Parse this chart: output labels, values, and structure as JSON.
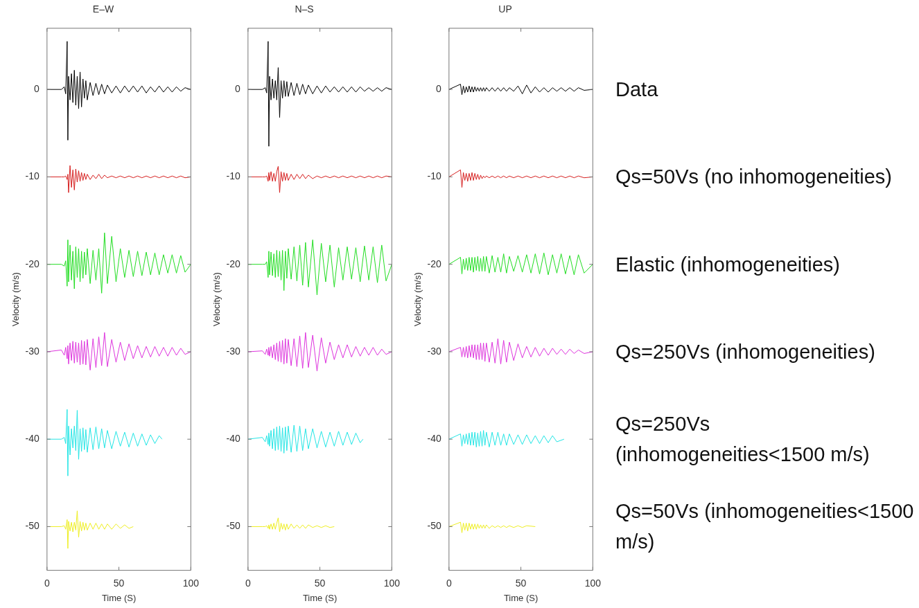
{
  "chart_data": [
    {
      "type": "line",
      "title": "E–W",
      "xlabel": "Time (S)",
      "ylabel": "Velocity (m/s)",
      "xlim": [
        0,
        100
      ],
      "xticks": [
        0,
        50,
        100
      ],
      "ylim": [
        -55,
        7
      ],
      "yticks": [
        -50,
        -40,
        -30,
        -20,
        -10,
        0
      ],
      "marker": "none",
      "x": [
        0,
        10,
        12,
        13,
        14,
        14.5,
        15,
        16,
        17,
        18,
        19,
        20,
        21,
        22,
        23,
        24,
        25,
        26,
        27,
        28,
        30,
        32,
        34,
        36,
        38,
        40,
        42,
        45,
        48,
        51,
        54,
        57,
        60,
        63,
        66,
        69,
        72,
        75,
        78,
        81,
        84,
        87,
        90,
        93,
        96,
        100
      ],
      "series": [
        {
          "color": "#000000",
          "values": [
            0,
            0,
            0.3,
            -0.5,
            5.5,
            -5.8,
            1.5,
            -1.2,
            1.8,
            -1.5,
            2.2,
            -1.8,
            1.5,
            -2.2,
            2.0,
            -2.0,
            1.2,
            -1.0,
            1.0,
            -1.2,
            0.8,
            -0.7,
            0.7,
            -0.6,
            0.6,
            -0.5,
            0.5,
            -0.4,
            0.4,
            -0.4,
            0.4,
            -0.3,
            0.4,
            -0.3,
            0.4,
            -0.4,
            0.3,
            -0.3,
            0.4,
            -0.3,
            0.3,
            -0.3,
            0.3,
            -0.2,
            0.2,
            0
          ]
        },
        {
          "color": "#d62020",
          "values": [
            -10,
            -10,
            -10,
            -9.9,
            -10.3,
            -9.7,
            -11.8,
            -8.7,
            -11.2,
            -9.2,
            -11.5,
            -9.1,
            -10.6,
            -9.3,
            -10.5,
            -9.5,
            -10.4,
            -9.6,
            -10.3,
            -9.7,
            -10.3,
            -9.8,
            -10.2,
            -9.7,
            -10.2,
            -9.8,
            -10.1,
            -9.9,
            -10.1,
            -9.9,
            -10.1,
            -9.9,
            -10.1,
            -9.9,
            -10.1,
            -9.9,
            -10.1,
            -9.9,
            -10.1,
            -9.9,
            -10.1,
            -9.9,
            -10.1,
            -9.9,
            -10.1,
            -10
          ]
        },
        {
          "color": "#22dd22",
          "values": [
            -20,
            -20,
            -20.2,
            -19.6,
            -22.5,
            -17.2,
            -22,
            -17.8,
            -21.8,
            -18.5,
            -22.8,
            -18,
            -21.5,
            -18.2,
            -22,
            -18.5,
            -21.6,
            -18.6,
            -21.2,
            -18.2,
            -22.2,
            -18.4,
            -21.8,
            -18.2,
            -23.3,
            -16.4,
            -22.2,
            -16.8,
            -22,
            -18.2,
            -21.5,
            -18.4,
            -21.4,
            -18.5,
            -21.3,
            -18.6,
            -21.2,
            -18.7,
            -21.2,
            -18.9,
            -21,
            -18.9,
            -21,
            -19,
            -20.9,
            -20
          ]
        },
        {
          "color": "#dd33dd",
          "values": [
            -30,
            -29.8,
            -30.4,
            -29.5,
            -30.8,
            -29.3,
            -31.4,
            -29,
            -31,
            -28.8,
            -31.3,
            -28.9,
            -31.2,
            -29,
            -31.5,
            -28.7,
            -31.4,
            -28.8,
            -31.5,
            -28.6,
            -32.1,
            -28.5,
            -31.8,
            -28.3,
            -31.6,
            -27.8,
            -31.7,
            -28.6,
            -31.2,
            -28.9,
            -31,
            -29.1,
            -30.8,
            -29.3,
            -30.7,
            -29.4,
            -30.6,
            -29.4,
            -30.5,
            -29.5,
            -30.5,
            -29.5,
            -30.4,
            -29.6,
            -30.3,
            -30
          ]
        },
        {
          "color": "#22e5e5",
          "x": [
            0,
            10,
            12,
            13,
            14,
            14.5,
            15,
            16,
            17,
            18,
            19,
            20,
            21,
            22,
            23,
            24,
            25,
            26,
            27,
            28,
            30,
            32,
            34,
            36,
            38,
            40,
            42,
            45,
            48,
            51,
            54,
            57,
            60,
            63,
            66,
            69,
            72,
            75,
            78,
            80
          ],
          "values": [
            -40,
            -40,
            -39.8,
            -40.5,
            -36.6,
            -44.2,
            -38.5,
            -41.8,
            -38.8,
            -41,
            -38.5,
            -41.3,
            -36.7,
            -42.3,
            -38.8,
            -41.4,
            -38.7,
            -41.2,
            -38.9,
            -41.5,
            -38.7,
            -41.2,
            -38.6,
            -41.1,
            -38.8,
            -41,
            -39,
            -41.1,
            -39.1,
            -40.8,
            -39.2,
            -40.9,
            -39.3,
            -40.8,
            -39.4,
            -40.7,
            -39.5,
            -40.5,
            -39.6,
            -40
          ]
        },
        {
          "color": "#eeee22",
          "x": [
            0,
            10,
            12,
            13,
            14,
            14.5,
            15,
            16,
            17,
            18,
            19,
            20,
            21,
            22,
            23,
            24,
            25,
            26,
            27,
            28,
            30,
            32,
            34,
            36,
            38,
            40,
            42,
            45,
            48,
            51,
            54,
            57,
            60
          ],
          "values": [
            -50,
            -50,
            -49.9,
            -50.3,
            -49.2,
            -52.5,
            -49.4,
            -50.5,
            -49.5,
            -50.6,
            -49.5,
            -50.4,
            -48.2,
            -51.2,
            -49.4,
            -50.5,
            -49.5,
            -50.4,
            -49.6,
            -50.4,
            -49.6,
            -50.3,
            -49.6,
            -50.3,
            -49.7,
            -50.3,
            -49.7,
            -50.3,
            -49.7,
            -50.2,
            -49.8,
            -50.2,
            -50
          ]
        }
      ]
    },
    {
      "type": "line",
      "title": "N–S",
      "xlabel": "Time (S)",
      "ylabel": "Velocity (m/s)",
      "xlim": [
        0,
        100
      ],
      "xticks": [
        0,
        50,
        100
      ],
      "ylim": [
        -55,
        7
      ],
      "yticks": [
        -50,
        -40,
        -30,
        -20,
        -10,
        0
      ],
      "marker": "none",
      "x": [
        0,
        10,
        12,
        13,
        14,
        14.5,
        15,
        16,
        17,
        18,
        19,
        20,
        21,
        22,
        23,
        24,
        25,
        26,
        27,
        28,
        30,
        32,
        34,
        36,
        38,
        40,
        42,
        45,
        48,
        51,
        54,
        57,
        60,
        63,
        66,
        69,
        72,
        75,
        78,
        81,
        84,
        87,
        90,
        93,
        96,
        100
      ],
      "series": [
        {
          "color": "#000000",
          "values": [
            0,
            0,
            0.2,
            -0.4,
            5.5,
            -6.5,
            1.5,
            -1.2,
            1.2,
            -1.0,
            1.0,
            -1.2,
            2.5,
            -3.2,
            1.0,
            -1.0,
            1.0,
            -0.8,
            0.9,
            -0.8,
            0.8,
            -0.7,
            0.7,
            -0.6,
            0.6,
            -0.5,
            0.5,
            -0.5,
            0.4,
            -0.4,
            0.4,
            -0.3,
            0.3,
            -0.3,
            0.3,
            -0.3,
            0.3,
            -0.3,
            0.3,
            -0.2,
            0.2,
            -0.2,
            0.2,
            -0.2,
            0.2,
            0
          ]
        },
        {
          "color": "#d62020",
          "values": [
            -10,
            -10,
            -10,
            -9.9,
            -10.5,
            -9.5,
            -10.4,
            -9.4,
            -10.5,
            -9.6,
            -10.5,
            -9.4,
            -8.8,
            -11.8,
            -9.4,
            -10.5,
            -9.5,
            -10.4,
            -9.6,
            -10.4,
            -9.7,
            -10.3,
            -9.7,
            -10.2,
            -9.7,
            -10.2,
            -9.8,
            -10.2,
            -9.9,
            -10.1,
            -9.9,
            -10.1,
            -9.9,
            -10.1,
            -9.9,
            -10.1,
            -9.9,
            -10.1,
            -9.9,
            -10.1,
            -9.9,
            -10.1,
            -9.9,
            -10.1,
            -9.9,
            -10
          ]
        },
        {
          "color": "#22dd22",
          "values": [
            -20,
            -20,
            -20,
            -19.7,
            -21.5,
            -18.5,
            -21.2,
            -18.6,
            -21.3,
            -18.8,
            -21.5,
            -18.4,
            -21.4,
            -18.5,
            -21.8,
            -18.4,
            -23,
            -18.5,
            -21.6,
            -18.2,
            -21.7,
            -18,
            -21.9,
            -17.8,
            -22.4,
            -17.5,
            -22.6,
            -17.2,
            -23.5,
            -17.6,
            -22,
            -17.8,
            -22.6,
            -18.1,
            -21.8,
            -18,
            -21.7,
            -18.1,
            -22,
            -17.9,
            -21.8,
            -18,
            -22.1,
            -17.8,
            -21.9,
            -20
          ]
        },
        {
          "color": "#dd33dd",
          "values": [
            -30,
            -29.9,
            -30.3,
            -29.7,
            -30.4,
            -29.5,
            -30.5,
            -29.4,
            -30.7,
            -29.2,
            -30.9,
            -29,
            -31.1,
            -28.8,
            -31.2,
            -28.7,
            -31.4,
            -28.5,
            -31.3,
            -28.6,
            -31.6,
            -28.5,
            -31.7,
            -28.2,
            -31.9,
            -27.8,
            -31.8,
            -28.1,
            -32.2,
            -28.4,
            -31.3,
            -28.9,
            -30.9,
            -29.2,
            -30.7,
            -29.2,
            -30.6,
            -29.4,
            -30.5,
            -29.5,
            -30.4,
            -29.5,
            -30.4,
            -29.7,
            -30.3,
            -30
          ]
        },
        {
          "color": "#22e5e5",
          "x": [
            0,
            10,
            12,
            13,
            14,
            14.5,
            15,
            16,
            17,
            18,
            19,
            20,
            21,
            22,
            23,
            24,
            25,
            26,
            27,
            28,
            30,
            32,
            34,
            36,
            38,
            40,
            42,
            45,
            48,
            51,
            54,
            57,
            60,
            63,
            66,
            69,
            72,
            75,
            78,
            80
          ],
          "values": [
            -40,
            -39.8,
            -40.3,
            -39.6,
            -40.6,
            -39.3,
            -40.8,
            -39,
            -41.1,
            -38.8,
            -41.3,
            -38.6,
            -41.2,
            -38.5,
            -41.4,
            -38.7,
            -41.6,
            -38.6,
            -41.3,
            -38.5,
            -41.5,
            -38.4,
            -41.4,
            -38.5,
            -41.3,
            -38.8,
            -41.1,
            -38.8,
            -41,
            -39.1,
            -40.9,
            -39.2,
            -40.8,
            -39.1,
            -40.7,
            -39.2,
            -40.6,
            -39.3,
            -40.4,
            -40
          ]
        },
        {
          "color": "#eeee22",
          "x": [
            0,
            10,
            12,
            13,
            14,
            14.5,
            15,
            16,
            17,
            18,
            19,
            20,
            21,
            22,
            23,
            24,
            25,
            26,
            27,
            28,
            30,
            32,
            34,
            36,
            38,
            40,
            42,
            45,
            48,
            51,
            54,
            57,
            60
          ],
          "values": [
            -50,
            -50,
            -50,
            -49.9,
            -50.2,
            -49.8,
            -50.3,
            -49.7,
            -50.3,
            -49.6,
            -50.3,
            -49.6,
            -49,
            -50.6,
            -49.6,
            -50.3,
            -49.7,
            -50.4,
            -49.7,
            -50.3,
            -49.7,
            -50.2,
            -49.8,
            -50.2,
            -49.8,
            -50.2,
            -49.8,
            -50.1,
            -49.9,
            -50.1,
            -49.9,
            -50.1,
            -50
          ]
        }
      ]
    },
    {
      "type": "line",
      "title": "UP",
      "xlabel": "Time (S)",
      "ylabel": "Velocity (m/s)",
      "xlim": [
        0,
        100
      ],
      "xticks": [
        0,
        50,
        100
      ],
      "ylim": [
        -55,
        7
      ],
      "yticks": [
        -50,
        -40,
        -30,
        -20,
        -10,
        0
      ],
      "marker": "none",
      "x": [
        0,
        8,
        9,
        10,
        11,
        12,
        13,
        14,
        15,
        16,
        17,
        18,
        19,
        20,
        21,
        22,
        23,
        24,
        25,
        26,
        28,
        30,
        32,
        34,
        36,
        38,
        40,
        42,
        45,
        48,
        51,
        54,
        57,
        60,
        63,
        66,
        69,
        72,
        75,
        78,
        81,
        84,
        87,
        90,
        94,
        100
      ],
      "series": [
        {
          "name": "Data",
          "color": "#000000",
          "values": [
            0,
            0.6,
            -0.6,
            0.4,
            -0.4,
            0.3,
            -0.3,
            0.4,
            -0.3,
            0.3,
            -0.3,
            0.3,
            -0.2,
            0.2,
            -0.2,
            0.2,
            -0.2,
            0.2,
            -0.2,
            0.2,
            -0.2,
            0.2,
            -0.2,
            0.2,
            -0.2,
            0.2,
            -0.2,
            0.2,
            -0.2,
            0.4,
            -0.5,
            0.5,
            -0.4,
            0.3,
            -0.3,
            0.2,
            -0.3,
            0.2,
            -0.2,
            0.2,
            -0.2,
            0.2,
            -0.2,
            0.2,
            -0.1,
            0
          ]
        },
        {
          "name": "Qs=50Vs (no inhomogeneities)",
          "color": "#d62020",
          "values": [
            -10,
            -9.2,
            -11.2,
            -9.5,
            -10.4,
            -9.6,
            -10.5,
            -9.6,
            -10.4,
            -9.5,
            -10.4,
            -9.6,
            -10.3,
            -9.7,
            -10.3,
            -9.8,
            -10.2,
            -9.9,
            -10.1,
            -9.9,
            -10.1,
            -9.9,
            -10.1,
            -9.9,
            -10.1,
            -9.9,
            -10.1,
            -9.9,
            -10.1,
            -9.9,
            -10.1,
            -9.9,
            -10.1,
            -9.9,
            -10.1,
            -9.9,
            -10.1,
            -9.9,
            -10.1,
            -9.9,
            -10.1,
            -9.9,
            -10.1,
            -9.9,
            -10.1,
            -10
          ]
        },
        {
          "name": "Elastic (inhomogeneities)",
          "color": "#22dd22",
          "values": [
            -20,
            -19.2,
            -21.1,
            -19.4,
            -20.6,
            -19.3,
            -20.7,
            -19.2,
            -20.7,
            -19.2,
            -20.9,
            -19.2,
            -20.7,
            -19.1,
            -20.8,
            -19.3,
            -20.8,
            -19.1,
            -20.8,
            -19.1,
            -21,
            -19,
            -20.9,
            -19.2,
            -20.9,
            -18.8,
            -21,
            -19.1,
            -20.8,
            -19,
            -20.9,
            -18.9,
            -21,
            -18.8,
            -21.1,
            -18.7,
            -21.2,
            -18.9,
            -21,
            -18.8,
            -21.1,
            -19,
            -21.2,
            -18.9,
            -21,
            -20
          ]
        },
        {
          "name": "Qs=250Vs (inhomogeneities)",
          "color": "#dd33dd",
          "values": [
            -30,
            -29.5,
            -30.6,
            -29.5,
            -30.6,
            -29.4,
            -30.7,
            -29.3,
            -30.6,
            -29.2,
            -30.7,
            -29.2,
            -30.9,
            -29.2,
            -30.9,
            -29,
            -30.9,
            -29,
            -31.1,
            -29,
            -31.2,
            -28.9,
            -31.3,
            -28.5,
            -31.4,
            -28.7,
            -31.2,
            -28.9,
            -31,
            -29.1,
            -30.7,
            -29.4,
            -30.6,
            -29.5,
            -30.5,
            -29.6,
            -30.4,
            -29.6,
            -30.3,
            -29.7,
            -30.3,
            -29.7,
            -30.2,
            -29.8,
            -30.2,
            -30
          ]
        },
        {
          "name": "Qs=250Vs (inhomogeneities<1500 m/s)",
          "color": "#22e5e5",
          "x": [
            0,
            8,
            9,
            10,
            11,
            12,
            13,
            14,
            15,
            16,
            17,
            18,
            19,
            20,
            21,
            22,
            23,
            24,
            25,
            26,
            28,
            30,
            32,
            34,
            36,
            38,
            40,
            42,
            45,
            48,
            51,
            54,
            57,
            60,
            63,
            66,
            69,
            72,
            75,
            80
          ],
          "values": [
            -40,
            -39.4,
            -40.8,
            -39.5,
            -40.5,
            -39.4,
            -40.6,
            -39.3,
            -40.7,
            -39.2,
            -40.7,
            -39.2,
            -40.9,
            -39.3,
            -40.8,
            -39.1,
            -40.8,
            -39,
            -40.7,
            -39.2,
            -40.9,
            -39.2,
            -40.7,
            -39.2,
            -40.7,
            -39.4,
            -40.7,
            -39.4,
            -40.6,
            -39.5,
            -40.6,
            -39.5,
            -40.5,
            -39.6,
            -40.5,
            -39.6,
            -40.4,
            -39.6,
            -40.3,
            -40
          ]
        },
        {
          "name": "Qs=50Vs (inhomogeneities<1500 m/s)",
          "color": "#eeee22",
          "x": [
            0,
            8,
            9,
            10,
            11,
            12,
            13,
            14,
            15,
            16,
            17,
            18,
            19,
            20,
            21,
            22,
            23,
            24,
            25,
            26,
            28,
            30,
            32,
            34,
            36,
            38,
            40,
            42,
            45,
            48,
            51,
            54,
            60
          ],
          "values": [
            -50,
            -49.5,
            -50.7,
            -49.6,
            -50.4,
            -49.6,
            -50.5,
            -49.6,
            -50.3,
            -49.7,
            -50.3,
            -49.7,
            -50.3,
            -49.7,
            -50.2,
            -49.8,
            -50.2,
            -49.8,
            -50.2,
            -49.8,
            -50.2,
            -49.9,
            -50.1,
            -49.9,
            -50.1,
            -49.9,
            -50.1,
            -49.9,
            -50.1,
            -49.9,
            -50.1,
            -49.9,
            -50
          ]
        }
      ]
    }
  ]
}
